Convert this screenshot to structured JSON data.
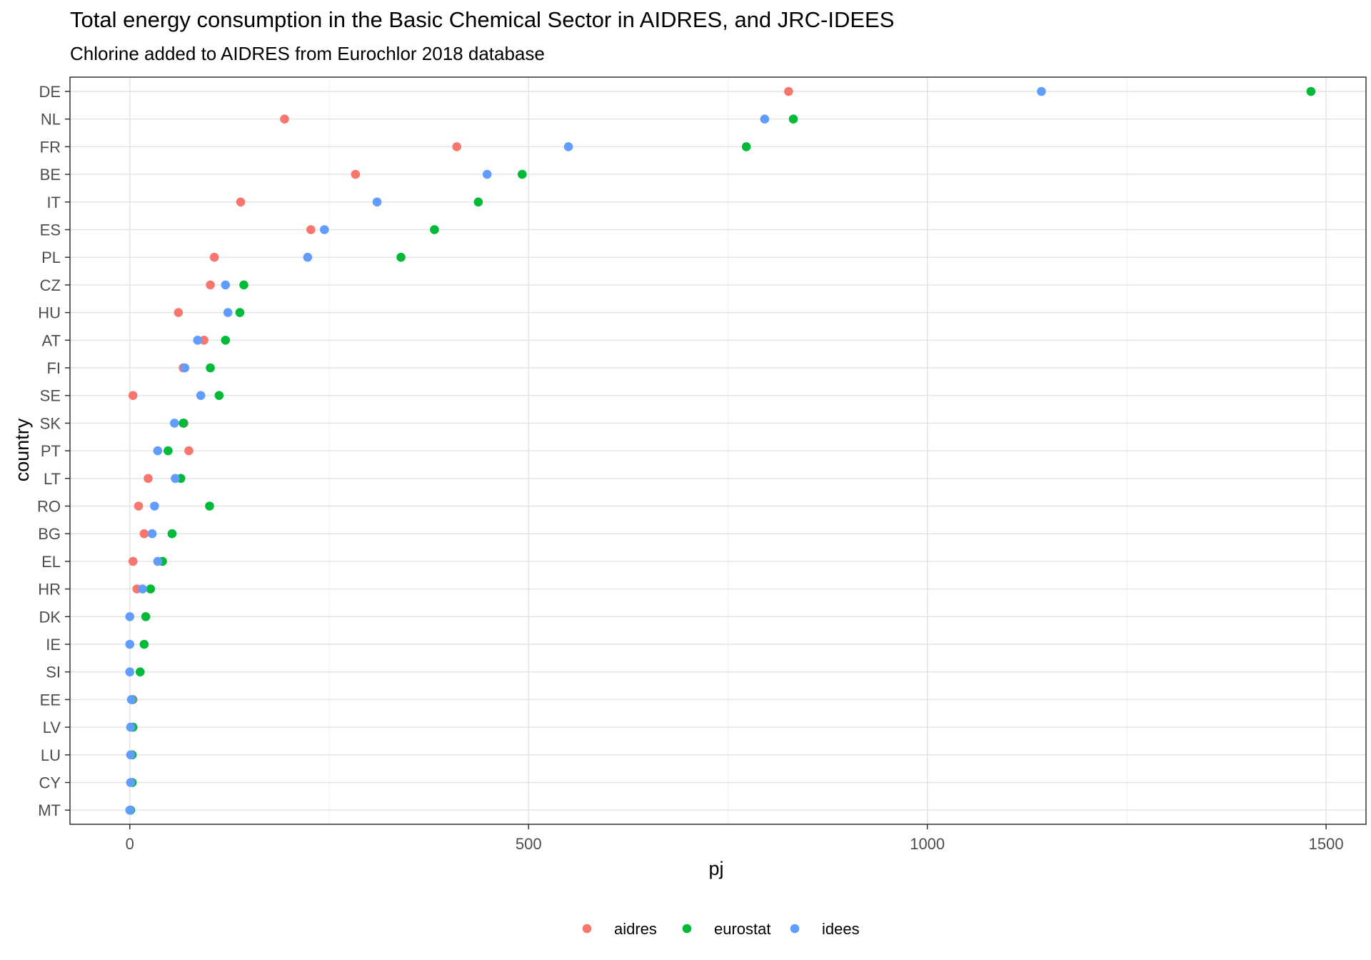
{
  "chart_data": {
    "type": "scatter",
    "title": "Total energy consumption in the Basic Chemical Sector in AIDRES, and JRC-IDEES",
    "subtitle": "Chlorine added to AIDRES from Eurochlor 2018 database",
    "xlabel": "pj",
    "ylabel": "country",
    "xlim": [
      -75,
      1550
    ],
    "xticks": [
      0,
      500,
      1000,
      1500
    ],
    "xtick_labels": [
      "0",
      "500",
      "1000",
      "1500"
    ],
    "grid": true,
    "legend_position": "bottom",
    "categories": [
      "DE",
      "NL",
      "FR",
      "BE",
      "IT",
      "ES",
      "PL",
      "CZ",
      "HU",
      "AT",
      "FI",
      "SE",
      "SK",
      "PT",
      "LT",
      "RO",
      "BG",
      "EL",
      "HR",
      "DK",
      "IE",
      "SI",
      "EE",
      "LV",
      "LU",
      "CY",
      "MT"
    ],
    "series": [
      {
        "name": "aidres",
        "color": "#F8766D",
        "values": [
          826,
          194,
          410,
          283,
          139,
          227,
          106,
          101,
          61,
          93,
          67,
          4,
          68,
          74,
          23,
          11,
          18,
          4,
          9,
          null,
          null,
          null,
          4,
          null,
          null,
          null,
          null
        ]
      },
      {
        "name": "eurostat",
        "color": "#00BA38",
        "values": [
          1481,
          832,
          773,
          492,
          437,
          382,
          340,
          143,
          138,
          120,
          101,
          112,
          67,
          48,
          64,
          100,
          53,
          41,
          26,
          20,
          18,
          13,
          3,
          4,
          3,
          3,
          1
        ]
      },
      {
        "name": "idees",
        "color": "#619CFF",
        "values": [
          1143,
          796,
          550,
          448,
          310,
          244,
          223,
          120,
          123,
          85,
          69,
          89,
          56,
          35,
          57,
          31,
          28,
          35,
          16,
          0,
          0,
          0,
          2,
          1,
          1,
          1,
          0
        ]
      }
    ]
  }
}
